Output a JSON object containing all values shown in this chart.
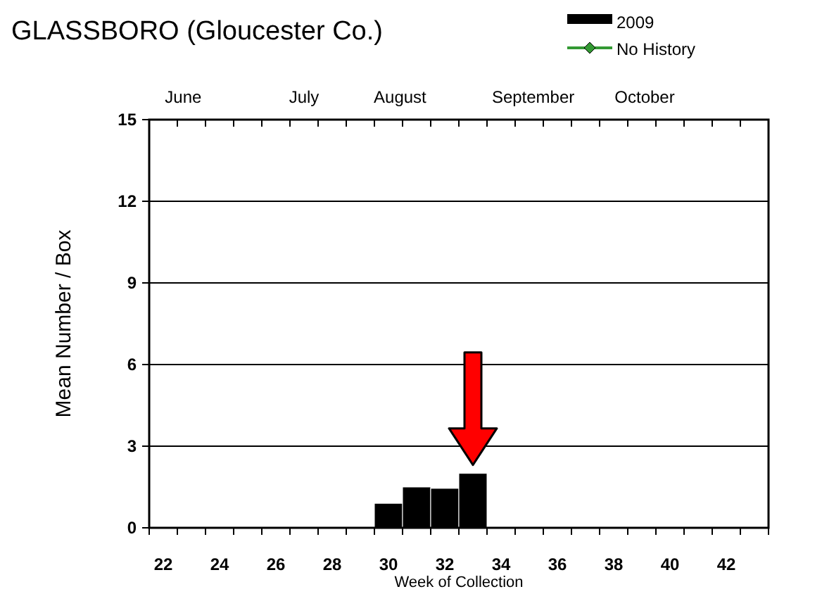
{
  "chart_data": {
    "type": "bar",
    "title": "GLASSBORO (Gloucester Co.)",
    "xlabel": "Week of Collection",
    "ylabel": "Mean Number / Box",
    "categories": [
      "22",
      null,
      "24",
      null,
      "26",
      null,
      "28",
      null,
      "30",
      null,
      "32",
      null,
      "34",
      null,
      "36",
      null,
      "38",
      null,
      "40",
      null,
      "42",
      null
    ],
    "series": [
      {
        "name": "2009",
        "color": "#000000",
        "values": [
          0,
          0,
          0,
          0,
          0,
          0,
          0,
          0,
          0.9,
          1.5,
          1.45,
          2.0,
          null,
          null,
          null,
          null,
          null,
          null,
          null,
          null,
          null,
          null
        ]
      },
      {
        "name": "No History",
        "type": "line",
        "color": "#339933",
        "marker": "diamond",
        "values": [
          null,
          null,
          null,
          null,
          null,
          null,
          null,
          null,
          null,
          null,
          null,
          null,
          null,
          null,
          null,
          null,
          null,
          null,
          null,
          null,
          null,
          null
        ]
      }
    ],
    "ylim": [
      0,
      15
    ],
    "yticks": [
      0,
      3,
      6,
      9,
      12,
      15
    ],
    "grid": "y",
    "legend": "top right",
    "annotations": [
      "June",
      "July",
      "August",
      "September",
      "October"
    ]
  }
}
